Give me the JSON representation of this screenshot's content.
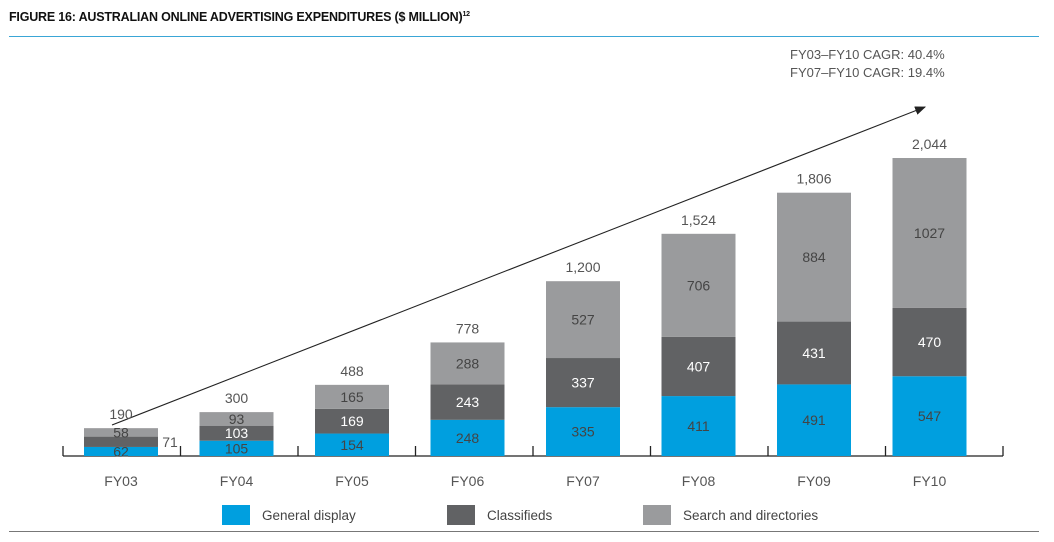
{
  "chart_data": {
    "type": "bar",
    "stacked": true,
    "title": "FIGURE 16: AUSTRALIAN ONLINE ADVERTISING EXPENDITURES ($ MILLION)",
    "title_footnote": "12",
    "categories": [
      "FY03",
      "FY04",
      "FY05",
      "FY06",
      "FY07",
      "FY08",
      "FY09",
      "FY10"
    ],
    "series": [
      {
        "name": "General display",
        "color": "#009fdf",
        "values": [
          62,
          105,
          154,
          248,
          335,
          411,
          491,
          547
        ]
      },
      {
        "name": "Classifieds",
        "color": "#616264",
        "values": [
          71,
          103,
          169,
          243,
          337,
          407,
          431,
          470
        ]
      },
      {
        "name": "Search and directories",
        "color": "#9a9b9d",
        "values": [
          58,
          93,
          165,
          288,
          527,
          706,
          884,
          1027
        ]
      }
    ],
    "totals": [
      "190",
      "300",
      "488",
      "778",
      "1,200",
      "1,524",
      "1,806",
      "2,044"
    ],
    "annotations": [
      "FY03–FY10 CAGR: 40.4%",
      "FY07–FY10 CAGR: 19.4%"
    ],
    "ylim": [
      0,
      2044
    ],
    "legend_position": "bottom",
    "grid": false
  }
}
